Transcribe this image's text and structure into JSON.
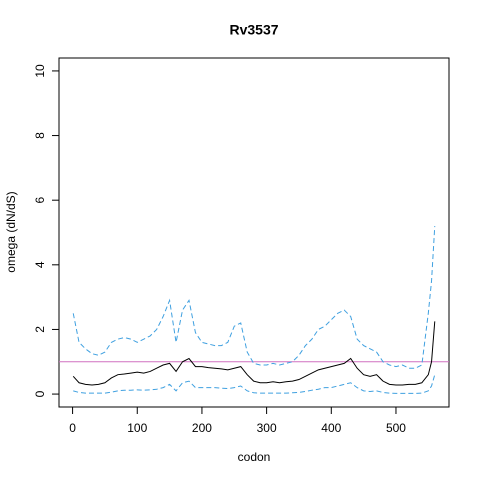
{
  "chart_data": {
    "type": "line",
    "title": "Rv3537",
    "xlabel": "codon",
    "ylabel": "omega (dN/dS)",
    "x": [
      1,
      10,
      20,
      30,
      40,
      50,
      60,
      70,
      80,
      90,
      100,
      110,
      120,
      130,
      140,
      150,
      160,
      170,
      180,
      190,
      200,
      210,
      220,
      230,
      240,
      250,
      260,
      270,
      280,
      290,
      300,
      310,
      320,
      330,
      340,
      350,
      360,
      370,
      380,
      390,
      400,
      410,
      420,
      430,
      440,
      450,
      460,
      470,
      480,
      490,
      500,
      510,
      520,
      530,
      540,
      550,
      555,
      560
    ],
    "series": [
      {
        "color": "#000000",
        "dashed": false,
        "values": [
          0.55,
          0.35,
          0.3,
          0.28,
          0.3,
          0.35,
          0.5,
          0.6,
          0.62,
          0.65,
          0.68,
          0.65,
          0.7,
          0.8,
          0.9,
          0.95,
          0.7,
          1.0,
          1.1,
          0.85,
          0.85,
          0.82,
          0.8,
          0.78,
          0.75,
          0.8,
          0.85,
          0.6,
          0.4,
          0.35,
          0.35,
          0.38,
          0.35,
          0.38,
          0.4,
          0.45,
          0.55,
          0.65,
          0.75,
          0.8,
          0.85,
          0.9,
          0.95,
          1.1,
          0.8,
          0.6,
          0.55,
          0.6,
          0.4,
          0.3,
          0.28,
          0.28,
          0.3,
          0.3,
          0.35,
          0.6,
          1.0,
          2.25
        ]
      },
      {
        "color": "#3fa0e0",
        "dashed": true,
        "values": [
          2.5,
          1.6,
          1.4,
          1.25,
          1.2,
          1.3,
          1.6,
          1.7,
          1.75,
          1.7,
          1.6,
          1.7,
          1.8,
          2.0,
          2.4,
          2.9,
          1.6,
          2.6,
          2.9,
          1.9,
          1.6,
          1.55,
          1.5,
          1.5,
          1.6,
          2.1,
          2.2,
          1.3,
          0.95,
          0.9,
          0.9,
          0.95,
          0.9,
          0.95,
          1.0,
          1.2,
          1.5,
          1.7,
          2.0,
          2.1,
          2.3,
          2.5,
          2.6,
          2.4,
          1.7,
          1.5,
          1.4,
          1.3,
          1.0,
          0.9,
          0.85,
          0.9,
          0.8,
          0.8,
          0.9,
          2.5,
          3.5,
          5.2
        ]
      },
      {
        "color": "#3fa0e0",
        "dashed": true,
        "values": [
          0.1,
          0.05,
          0.03,
          0.03,
          0.03,
          0.03,
          0.06,
          0.1,
          0.12,
          0.12,
          0.13,
          0.12,
          0.13,
          0.15,
          0.2,
          0.3,
          0.1,
          0.35,
          0.4,
          0.2,
          0.2,
          0.2,
          0.2,
          0.18,
          0.17,
          0.2,
          0.25,
          0.1,
          0.04,
          0.03,
          0.03,
          0.03,
          0.03,
          0.03,
          0.04,
          0.05,
          0.08,
          0.12,
          0.15,
          0.2,
          0.2,
          0.25,
          0.3,
          0.35,
          0.2,
          0.1,
          0.08,
          0.1,
          0.05,
          0.03,
          0.02,
          0.02,
          0.02,
          0.02,
          0.03,
          0.1,
          0.25,
          0.6
        ]
      }
    ],
    "hline": {
      "value": 1,
      "color": "#d070c0"
    },
    "xlim": [
      -21,
      582
    ],
    "ylim": [
      -0.4,
      10.4
    ],
    "xticks": [
      0,
      100,
      200,
      300,
      400,
      500
    ],
    "yticks": [
      0,
      2,
      4,
      6,
      8,
      10
    ]
  }
}
